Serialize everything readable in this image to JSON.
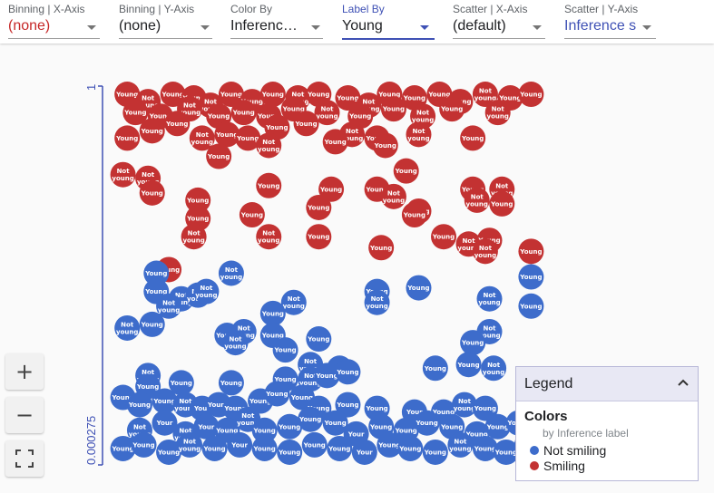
{
  "controls": [
    {
      "label": "Binning | X-Axis",
      "value": "(none)",
      "value_color": "red",
      "active": false
    },
    {
      "label": "Binning | Y-Axis",
      "value": "(none)",
      "value_color": "default",
      "active": false
    },
    {
      "label": "Color By",
      "value": "Inference...",
      "value_color": "default",
      "active": false
    },
    {
      "label": "Label By",
      "value": "Young",
      "value_color": "default",
      "active": true
    },
    {
      "label": "Scatter | X-Axis",
      "value": "(default)",
      "value_color": "default",
      "active": false
    },
    {
      "label": "Scatter | Y-Axis",
      "value": "Inference s",
      "value_color": "blue",
      "active": false
    }
  ],
  "zoom": {
    "in_label": "+",
    "out_label": "−",
    "fit_icon": "fit-to-screen-icon"
  },
  "legend": {
    "title": "Legend",
    "heading": "Colors",
    "subtitle": "by Inference label",
    "items": [
      {
        "label": "Not smiling",
        "color": "#3d6ccb"
      },
      {
        "label": "Smiling",
        "color": "#c33232"
      }
    ]
  },
  "chart_data": {
    "type": "scatter",
    "y_axis": {
      "max_label": "1",
      "min_label": "0.000275",
      "color": "#3f51b5"
    },
    "label_values": [
      "Young",
      "Not young"
    ],
    "series": [
      {
        "name": "Smiling",
        "color": "#c33232",
        "points": [
          [
            0.02,
            0.99,
            "Young"
          ],
          [
            0.07,
            0.97,
            "Not young"
          ],
          [
            0.13,
            0.99,
            "Young"
          ],
          [
            0.18,
            0.98,
            "Young"
          ],
          [
            0.22,
            0.96,
            "Not young"
          ],
          [
            0.27,
            0.99,
            "Young"
          ],
          [
            0.32,
            0.97,
            "Young"
          ],
          [
            0.37,
            0.99,
            "Young"
          ],
          [
            0.43,
            0.98,
            "Not young"
          ],
          [
            0.48,
            0.99,
            "Young"
          ],
          [
            0.55,
            0.98,
            "Young"
          ],
          [
            0.6,
            0.96,
            "Not young"
          ],
          [
            0.65,
            0.99,
            "Young"
          ],
          [
            0.71,
            0.98,
            "Young"
          ],
          [
            0.77,
            0.99,
            "Young"
          ],
          [
            0.82,
            0.97,
            "Young"
          ],
          [
            0.88,
            0.99,
            "Not young"
          ],
          [
            0.94,
            0.98,
            "Young"
          ],
          [
            0.99,
            0.99,
            "Young"
          ],
          [
            0.04,
            0.94,
            "Young"
          ],
          [
            0.1,
            0.93,
            "Young"
          ],
          [
            0.17,
            0.95,
            "Not young"
          ],
          [
            0.24,
            0.93,
            "Young"
          ],
          [
            0.3,
            0.94,
            "Young"
          ],
          [
            0.36,
            0.93,
            "Young"
          ],
          [
            0.42,
            0.95,
            "Young"
          ],
          [
            0.5,
            0.94,
            "Not young"
          ],
          [
            0.58,
            0.93,
            "Young"
          ],
          [
            0.66,
            0.95,
            "Young"
          ],
          [
            0.73,
            0.93,
            "Not young"
          ],
          [
            0.8,
            0.95,
            "Young"
          ],
          [
            0.91,
            0.94,
            "Not young"
          ],
          [
            0.02,
            0.87,
            "Young"
          ],
          [
            0.08,
            0.89,
            "Young"
          ],
          [
            0.14,
            0.91,
            "Young"
          ],
          [
            0.2,
            0.87,
            "Not young"
          ],
          [
            0.26,
            0.88,
            "Young"
          ],
          [
            0.31,
            0.87,
            "Young"
          ],
          [
            0.38,
            0.9,
            "Young"
          ],
          [
            0.45,
            0.91,
            "Young"
          ],
          [
            0.56,
            0.88,
            "Not young"
          ],
          [
            0.62,
            0.87,
            "Young"
          ],
          [
            0.72,
            0.88,
            "Not young"
          ],
          [
            0.85,
            0.87,
            "Young"
          ],
          [
            0.24,
            0.82,
            "Young"
          ],
          [
            0.36,
            0.85,
            "Not young"
          ],
          [
            0.52,
            0.86,
            "Young"
          ],
          [
            0.64,
            0.85,
            "Young"
          ],
          [
            0.01,
            0.77,
            "Not young"
          ],
          [
            0.07,
            0.76,
            "Not young"
          ],
          [
            0.08,
            0.72,
            "Young"
          ],
          [
            0.36,
            0.74,
            "Young"
          ],
          [
            0.69,
            0.78,
            "Young"
          ],
          [
            0.51,
            0.73,
            "Young"
          ],
          [
            0.62,
            0.73,
            "Young"
          ],
          [
            0.66,
            0.71,
            "Not young"
          ],
          [
            0.72,
            0.67,
            "Young"
          ],
          [
            0.85,
            0.73,
            "Young"
          ],
          [
            0.86,
            0.7,
            "Not young"
          ],
          [
            0.92,
            0.73,
            "Not young"
          ],
          [
            0.92,
            0.69,
            "Young"
          ],
          [
            0.19,
            0.7,
            "Young"
          ],
          [
            0.19,
            0.65,
            "Young"
          ],
          [
            0.32,
            0.66,
            "Young"
          ],
          [
            0.48,
            0.68,
            "Young"
          ],
          [
            0.71,
            0.66,
            "Young"
          ],
          [
            0.36,
            0.6,
            "Not young"
          ],
          [
            0.48,
            0.6,
            "Young"
          ],
          [
            0.78,
            0.6,
            "Young"
          ],
          [
            0.84,
            0.58,
            "Not young"
          ],
          [
            0.89,
            0.59,
            "Young"
          ],
          [
            0.63,
            0.57,
            "Young"
          ],
          [
            0.88,
            0.56,
            "Not young"
          ],
          [
            0.99,
            0.56,
            "Young"
          ],
          [
            0.18,
            0.6,
            "Not young"
          ],
          [
            0.12,
            0.51,
            "Young"
          ]
        ]
      },
      {
        "name": "Not smiling",
        "color": "#3d6ccb",
        "points": [
          [
            0.09,
            0.5,
            "Young"
          ],
          [
            0.27,
            0.5,
            "Not young"
          ],
          [
            0.09,
            0.45,
            "Young"
          ],
          [
            0.15,
            0.43,
            "Not young"
          ],
          [
            0.19,
            0.44,
            "Not young"
          ],
          [
            0.12,
            0.41,
            "Not young"
          ],
          [
            0.21,
            0.45,
            "Not young"
          ],
          [
            0.42,
            0.42,
            "Not young"
          ],
          [
            0.62,
            0.45,
            "Young"
          ],
          [
            0.62,
            0.42,
            "Not young"
          ],
          [
            0.72,
            0.46,
            "Young"
          ],
          [
            0.89,
            0.43,
            "Not young"
          ],
          [
            0.99,
            0.49,
            "Young"
          ],
          [
            0.99,
            0.41,
            "Young"
          ],
          [
            0.37,
            0.39,
            "Young"
          ],
          [
            0.02,
            0.35,
            "Not young"
          ],
          [
            0.08,
            0.36,
            "Young"
          ],
          [
            0.26,
            0.33,
            "Young"
          ],
          [
            0.3,
            0.34,
            "Not young"
          ],
          [
            0.37,
            0.33,
            "Young"
          ],
          [
            0.48,
            0.32,
            "Young"
          ],
          [
            0.89,
            0.34,
            "Not young"
          ],
          [
            0.28,
            0.31,
            "Not young"
          ],
          [
            0.4,
            0.29,
            "Young"
          ],
          [
            0.85,
            0.31,
            "Young"
          ],
          [
            0.84,
            0.25,
            "Young"
          ],
          [
            0.9,
            0.24,
            "Not young"
          ],
          [
            0.76,
            0.24,
            "Young"
          ],
          [
            0.46,
            0.25,
            "Not young"
          ],
          [
            0.53,
            0.24,
            "Young"
          ],
          [
            0.07,
            0.22,
            "Not young"
          ],
          [
            0.07,
            0.19,
            "Young"
          ],
          [
            0.15,
            0.2,
            "Young"
          ],
          [
            0.27,
            0.2,
            "Young"
          ],
          [
            0.4,
            0.21,
            "Young"
          ],
          [
            0.46,
            0.21,
            "Not young"
          ],
          [
            0.5,
            0.22,
            "Young"
          ],
          [
            0.55,
            0.23,
            "Young"
          ],
          [
            0.01,
            0.16,
            "Young"
          ],
          [
            0.05,
            0.14,
            "Young"
          ],
          [
            0.11,
            0.15,
            "Young"
          ],
          [
            0.16,
            0.14,
            "Not young"
          ],
          [
            0.2,
            0.13,
            "Your"
          ],
          [
            0.24,
            0.14,
            "Young"
          ],
          [
            0.28,
            0.13,
            "Young"
          ],
          [
            0.34,
            0.15,
            "Young"
          ],
          [
            0.38,
            0.17,
            "Young"
          ],
          [
            0.44,
            0.16,
            "Young"
          ],
          [
            0.48,
            0.13,
            "Young"
          ],
          [
            0.55,
            0.14,
            "Young"
          ],
          [
            0.62,
            0.13,
            "Young"
          ],
          [
            0.71,
            0.12,
            "Your"
          ],
          [
            0.78,
            0.12,
            "Young"
          ],
          [
            0.83,
            0.14,
            "Not young"
          ],
          [
            0.88,
            0.13,
            "Young"
          ],
          [
            0.05,
            0.07,
            "Not young"
          ],
          [
            0.11,
            0.09,
            "Your"
          ],
          [
            0.16,
            0.06,
            "Not young"
          ],
          [
            0.21,
            0.08,
            "Your"
          ],
          [
            0.26,
            0.07,
            "Young"
          ],
          [
            0.31,
            0.1,
            "Not young"
          ],
          [
            0.35,
            0.07,
            "Young"
          ],
          [
            0.41,
            0.08,
            "Young"
          ],
          [
            0.46,
            0.1,
            "Young"
          ],
          [
            0.52,
            0.09,
            "Young"
          ],
          [
            0.57,
            0.06,
            "Your"
          ],
          [
            0.63,
            0.08,
            "Young"
          ],
          [
            0.69,
            0.07,
            "Young"
          ],
          [
            0.74,
            0.09,
            "Young"
          ],
          [
            0.8,
            0.08,
            "Young"
          ],
          [
            0.86,
            0.06,
            "Young"
          ],
          [
            0.91,
            0.08,
            "Young"
          ],
          [
            0.96,
            0.09,
            "Young"
          ],
          [
            0.01,
            0.02,
            "Young"
          ],
          [
            0.06,
            0.03,
            "Young"
          ],
          [
            0.12,
            0.01,
            "Young"
          ],
          [
            0.17,
            0.03,
            "Not young"
          ],
          [
            0.23,
            0.02,
            "Young"
          ],
          [
            0.29,
            0.03,
            "Your"
          ],
          [
            0.35,
            0.02,
            "Young"
          ],
          [
            0.41,
            0.01,
            "Young"
          ],
          [
            0.47,
            0.03,
            "Young"
          ],
          [
            0.53,
            0.02,
            "Young"
          ],
          [
            0.59,
            0.01,
            "Your"
          ],
          [
            0.65,
            0.03,
            "Young"
          ],
          [
            0.7,
            0.02,
            "Young"
          ],
          [
            0.76,
            0.01,
            "Young"
          ],
          [
            0.82,
            0.03,
            "Not young"
          ],
          [
            0.88,
            0.02,
            "Young"
          ],
          [
            0.93,
            0.01,
            "Young"
          ],
          [
            0.98,
            0.03,
            "Young"
          ]
        ]
      }
    ]
  }
}
